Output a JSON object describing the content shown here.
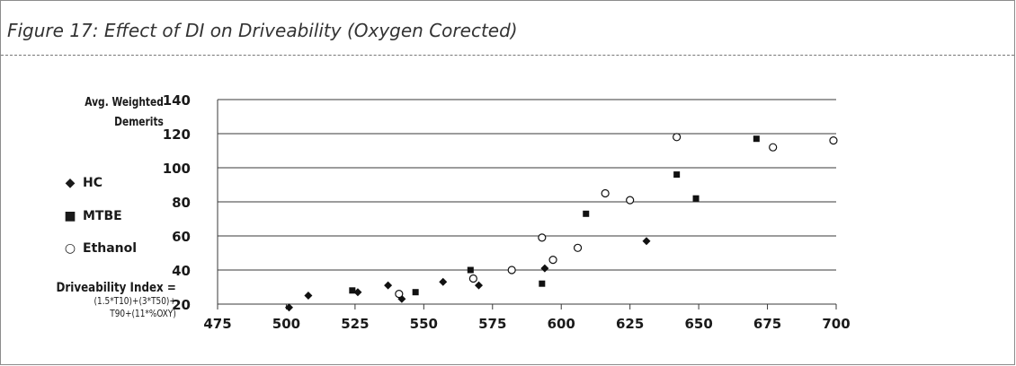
{
  "title": "Figure 17: Effect of DI on Driveability (Oxygen Corected)",
  "y_axis_label_line1": "Avg. Weighted",
  "y_axis_label_line2": "Demerits",
  "legend": [
    {
      "symbol": "◆",
      "label": "HC"
    },
    {
      "symbol": "■",
      "label": "MTBE"
    },
    {
      "symbol": "○",
      "label": "Ethanol"
    }
  ],
  "x_axis_label_line1": "Driveability Index =",
  "x_axis_label_line2": "(1.5*T10)+(3*T50)+",
  "x_axis_label_line3": "T90+(11*%OXY)",
  "chart_data": {
    "type": "scatter",
    "title": "Figure 17: Effect of DI on Driveability (Oxygen Corected)",
    "xlabel": "Driveability Index = (1.5*T10)+(3*T50)+ T90+(11*%OXY)",
    "ylabel": "Avg. Weighted Demerits",
    "xlim": [
      475,
      700
    ],
    "ylim": [
      20,
      140
    ],
    "x_ticks": [
      475,
      500,
      525,
      550,
      575,
      600,
      625,
      650,
      675,
      700
    ],
    "y_ticks": [
      20,
      40,
      60,
      80,
      100,
      120,
      140
    ],
    "grid": "horizontal",
    "legend_position": "left",
    "series": [
      {
        "name": "HC",
        "marker": "diamond",
        "points": [
          [
            501,
            18
          ],
          [
            508,
            25
          ],
          [
            526,
            27
          ],
          [
            537,
            31
          ],
          [
            542,
            23
          ],
          [
            557,
            33
          ],
          [
            570,
            31
          ],
          [
            594,
            41
          ],
          [
            631,
            57
          ]
        ]
      },
      {
        "name": "MTBE",
        "marker": "square",
        "points": [
          [
            524,
            28
          ],
          [
            547,
            27
          ],
          [
            567,
            40
          ],
          [
            593,
            32
          ],
          [
            609,
            73
          ],
          [
            642,
            96
          ],
          [
            649,
            82
          ],
          [
            671,
            117
          ]
        ]
      },
      {
        "name": "Ethanol",
        "marker": "circle-open",
        "points": [
          [
            541,
            26
          ],
          [
            568,
            35
          ],
          [
            582,
            40
          ],
          [
            593,
            59
          ],
          [
            597,
            46
          ],
          [
            606,
            53
          ],
          [
            616,
            85
          ],
          [
            625,
            81
          ],
          [
            642,
            118
          ],
          [
            677,
            112
          ],
          [
            699,
            116
          ]
        ]
      }
    ]
  }
}
